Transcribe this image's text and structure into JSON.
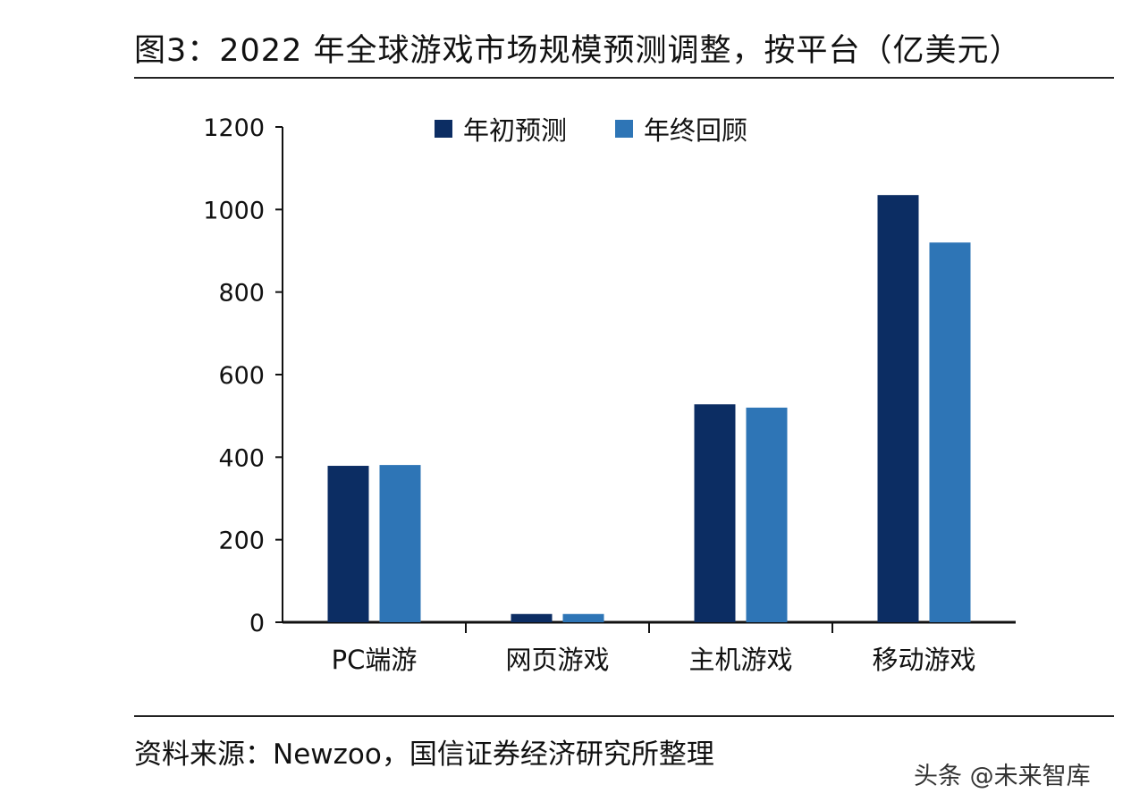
{
  "title": "图3：2022 年全球游戏市场规模预测调整，按平台（亿美元）",
  "source": "资料来源：Newzoo，国信证券经济研究所整理",
  "watermark": "头条 @未来智库",
  "chart_data": {
    "type": "bar",
    "title": "图3：2022 年全球游戏市场规模预测调整，按平台（亿美元）",
    "categories": [
      "PC端游",
      "网页游戏",
      "主机游戏",
      "移动游戏"
    ],
    "series": [
      {
        "name": "年初预测",
        "values": [
          379,
          20,
          528,
          1035
        ],
        "color": "#0c2d63"
      },
      {
        "name": "年终回顾",
        "values": [
          381,
          20,
          520,
          920
        ],
        "color": "#2e75b6"
      }
    ],
    "yticks": [
      0,
      200,
      400,
      600,
      800,
      1000,
      1200
    ],
    "ylim": [
      0,
      1200
    ],
    "grid": false,
    "legend_position": "top-center"
  }
}
